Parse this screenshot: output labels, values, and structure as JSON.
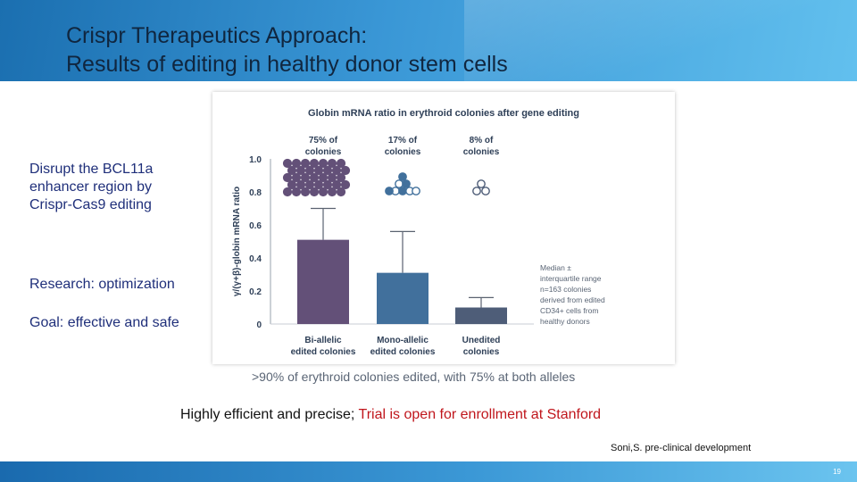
{
  "slide": {
    "title_line1": "Crispr Therapeutics Approach:",
    "title_line2": "Results of editing in healthy donor stem cells",
    "left_text_1": "Disrupt the BCL11a enhancer region by Crispr-Cas9 editing",
    "left_text_2": "Research: optimization",
    "left_text_3": "Goal: effective and safe",
    "bottom_text_main": "Highly efficient and precise; ",
    "bottom_text_highlight": "Trial is open for enrollment at Stanford",
    "reference": "Soni,S. pre-clinical development",
    "page_number": "19",
    "colors": {
      "header_blue": "#2f8ccc",
      "highlight_red": "#c0161c",
      "left_text_navy": "#1f2f7a"
    }
  },
  "chart_data": {
    "type": "bar",
    "title": "Globin mRNA ratio in erythroid colonies after gene editing",
    "ylabel": "γ/(γ+β)-globin mRNA ratio",
    "ylim": [
      0,
      1.0
    ],
    "yticks": [
      "0",
      "0.2",
      "0.4",
      "0.6",
      "0.8",
      "1.0"
    ],
    "categories": [
      "Bi-allelic edited colonies",
      "Mono-allelic edited colonies",
      "Unedited colonies"
    ],
    "category_lines": [
      [
        "Bi-allelic",
        "edited colonies"
      ],
      [
        "Mono-allelic",
        "edited colonies"
      ],
      [
        "Unedited",
        "colonies"
      ]
    ],
    "values": [
      0.51,
      0.31,
      0.1
    ],
    "error_upper": [
      0.7,
      0.56,
      0.16
    ],
    "bar_colors": [
      "#635078",
      "#41709c",
      "#4e5d78"
    ],
    "percent_labels": [
      [
        "75% of",
        "colonies"
      ],
      [
        "17% of",
        "colonies"
      ],
      [
        "8% of",
        "colonies"
      ]
    ],
    "legend_note": [
      "Median ±",
      "interquartile range",
      "n=163 colonies",
      "derived from edited",
      "CD34+ cells from",
      "healthy donors"
    ],
    "caption": ">90% of erythroid colonies edited, with 75% at both alleles"
  }
}
